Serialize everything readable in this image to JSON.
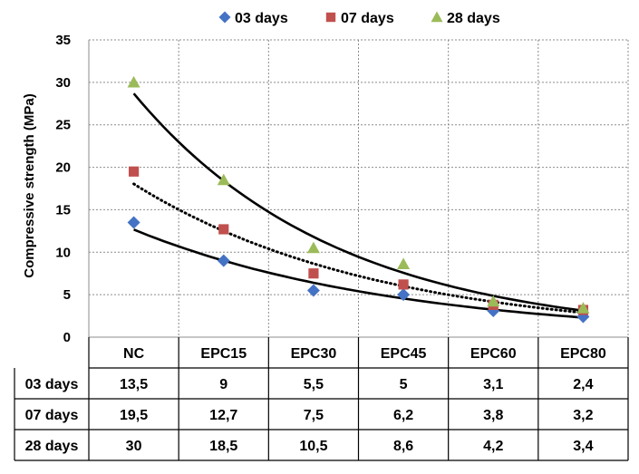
{
  "chart_data": {
    "type": "scatter",
    "ylabel": "Compressive strength (MPa)",
    "ylim": [
      0,
      35
    ],
    "yticks": [
      0,
      5,
      10,
      15,
      20,
      25,
      30,
      35
    ],
    "grid": true,
    "legend_placement": "top-center",
    "categories": [
      "NC",
      "EPC15",
      "EPC30",
      "EPC45",
      "EPC60",
      "EPC80"
    ],
    "series": [
      {
        "name": "03 days",
        "marker": "diamond",
        "color": "#4472C4",
        "trendline": "solid",
        "values": [
          13.5,
          9,
          5.5,
          5,
          3.1,
          2.4
        ],
        "table_values": [
          "13,5",
          "9",
          "5,5",
          "5",
          "3,1",
          "2,4"
        ]
      },
      {
        "name": "07 days",
        "marker": "square",
        "color": "#C0504D",
        "trendline": "dotted",
        "values": [
          19.5,
          12.7,
          7.5,
          6.2,
          3.8,
          3.2
        ],
        "table_values": [
          "19,5",
          "12,7",
          "7,5",
          "6,2",
          "3,8",
          "3,2"
        ]
      },
      {
        "name": "28 days",
        "marker": "triangle",
        "color": "#9BBB59",
        "trendline": "solid",
        "values": [
          30,
          18.5,
          10.5,
          8.6,
          4.2,
          3.4
        ],
        "table_values": [
          "30",
          "18,5",
          "10,5",
          "8,6",
          "4,2",
          "3,4"
        ]
      }
    ]
  }
}
